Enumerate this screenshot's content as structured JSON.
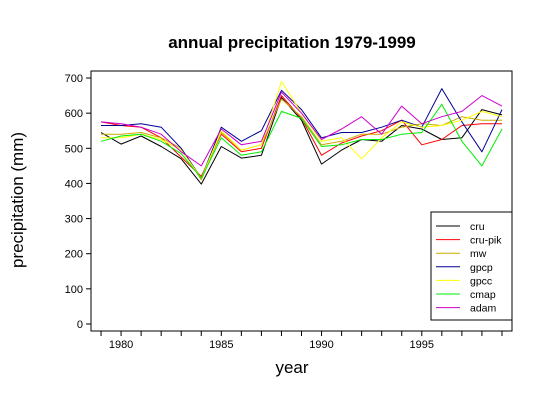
{
  "chart_data": {
    "type": "line",
    "title": "annual precipitation 1979-1999",
    "xlabel": "year",
    "ylabel": "precipitation (mm)",
    "xlim": [
      1978.5,
      1999.5
    ],
    "ylim": [
      -20,
      720
    ],
    "xticks": [
      1980,
      1985,
      1990,
      1995
    ],
    "yticks": [
      0,
      100,
      200,
      300,
      400,
      500,
      600,
      700
    ],
    "legend_position": "bottom-right",
    "x": [
      1979,
      1980,
      1981,
      1982,
      1983,
      1984,
      1985,
      1986,
      1987,
      1988,
      1989,
      1990,
      1991,
      1992,
      1993,
      1994,
      1995,
      1996,
      1997,
      1998,
      1999
    ],
    "series": [
      {
        "name": "cru",
        "color": "#000000",
        "values": [
          545,
          512,
          535,
          505,
          470,
          398,
          505,
          472,
          480,
          645,
          580,
          455,
          495,
          525,
          520,
          565,
          555,
          525,
          530,
          610,
          595
        ]
      },
      {
        "name": "cru-pik",
        "color": "#ff0000",
        "values": [
          575,
          565,
          560,
          530,
          475,
          420,
          540,
          490,
          500,
          650,
          585,
          480,
          515,
          535,
          550,
          580,
          510,
          525,
          565,
          570,
          570
        ]
      },
      {
        "name": "mw",
        "color": "#ccaa00",
        "values": [
          540,
          540,
          545,
          530,
          500,
          410,
          545,
          495,
          510,
          640,
          590,
          510,
          520,
          540,
          540,
          560,
          570,
          565,
          590,
          580,
          580
        ]
      },
      {
        "name": "gpcp",
        "color": "#000099",
        "values": [
          565,
          565,
          570,
          560,
          500,
          415,
          560,
          520,
          550,
          665,
          610,
          530,
          545,
          545,
          560,
          580,
          560,
          670,
          575,
          490,
          610
        ]
      },
      {
        "name": "gpcc",
        "color": "#ffff00",
        "values": [
          530,
          530,
          540,
          525,
          495,
          415,
          550,
          495,
          510,
          690,
          600,
          520,
          530,
          470,
          530,
          575,
          560,
          565,
          580,
          605,
          590
        ]
      },
      {
        "name": "cmap",
        "color": "#00ee00",
        "values": [
          520,
          535,
          540,
          520,
          485,
          415,
          530,
          480,
          490,
          605,
          585,
          505,
          510,
          525,
          525,
          540,
          545,
          625,
          520,
          450,
          555
        ]
      },
      {
        "name": "adam",
        "color": "#cc00cc",
        "values": [
          575,
          570,
          560,
          540,
          490,
          450,
          555,
          510,
          520,
          660,
          600,
          525,
          555,
          590,
          540,
          620,
          570,
          590,
          605,
          650,
          620
        ]
      }
    ]
  }
}
